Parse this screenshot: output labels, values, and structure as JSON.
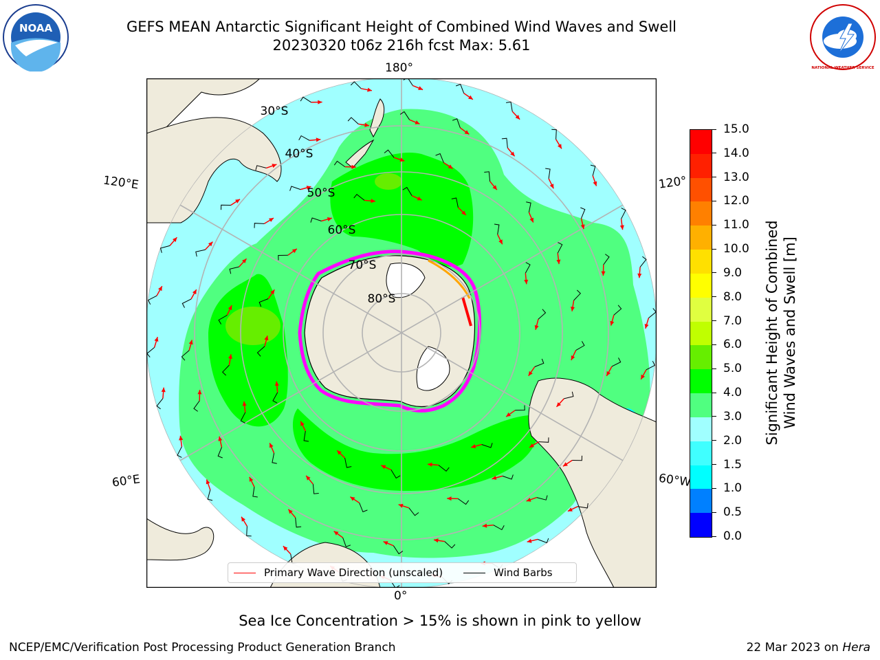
{
  "figure": {
    "title_line1": "GEFS MEAN Antarctic Significant Height of Combined Wind Waves and Swell",
    "title_line2": "20230320 t06z 216h fcst   Max: 5.61"
  },
  "logos": {
    "left_icon": "noaa-logo-icon",
    "right_icon": "national-weather-service-logo-icon",
    "left_text": "NOAA",
    "right_text": "NATIONAL WEATHER SERVICE"
  },
  "map": {
    "projection": "south-polar-stereographic",
    "lon_labels": {
      "top": "180°",
      "bottom": "0°",
      "left_upper": "120°E",
      "left_lower": "60°E",
      "right_upper": "120°",
      "right_lower": "60°W"
    },
    "lat_labels": [
      "30°S",
      "40°S",
      "50°S",
      "60°S",
      "70°S",
      "80°S"
    ],
    "land_color": "#efebdc",
    "ice_colors": [
      "#ff00ff",
      "#ffa500",
      "#ffff00"
    ]
  },
  "legend": {
    "wave_label": "Primary Wave Direction (unscaled)",
    "wind_label": "Wind Barbs",
    "wave_color": "#ff0000",
    "wind_color": "#000000"
  },
  "colorbar": {
    "label_line1": "Significant Height of Combined",
    "label_line2": "Wind Waves and Swell [m]",
    "units": "m",
    "ticks": [
      "0.0",
      "0.5",
      "1.0",
      "1.5",
      "2.0",
      "3.0",
      "4.0",
      "5.0",
      "6.0",
      "7.0",
      "8.0",
      "9.0",
      "10.0",
      "11.0",
      "12.0",
      "13.0",
      "14.0",
      "15.0"
    ],
    "colors": [
      "#0000ff",
      "#0080ff",
      "#00ffff",
      "#40ffff",
      "#a0ffff",
      "#50ff80",
      "#00ff00",
      "#66ee00",
      "#c0ff00",
      "#e0ff40",
      "#ffff00",
      "#ffe000",
      "#ffb000",
      "#ff8000",
      "#ff5000",
      "#ff2000",
      "#ff0000"
    ]
  },
  "chart_data": {
    "type": "heatmap",
    "title": "GEFS MEAN Antarctic Significant Height of Combined Wind Waves and Swell",
    "subtitle": "20230320 t06z 216h fcst   Max: 5.61",
    "colorbar_label": "Significant Height of Combined Wind Waves and Swell [m]",
    "value_range": [
      0.0,
      15.0
    ],
    "max_value": 5.61,
    "levels": [
      0.0,
      0.5,
      1.0,
      1.5,
      2.0,
      3.0,
      4.0,
      5.0,
      6.0,
      7.0,
      8.0,
      9.0,
      10.0,
      11.0,
      12.0,
      13.0,
      14.0,
      15.0
    ]
  },
  "notes": {
    "sea_ice": "Sea Ice Concentration > 15% is shown in pink to yellow"
  },
  "footer": {
    "left": "NCEP/EMC/Verification Post Processing Product Generation Branch",
    "right_date": "22 Mar 2023 on",
    "right_machine": "Hera"
  }
}
